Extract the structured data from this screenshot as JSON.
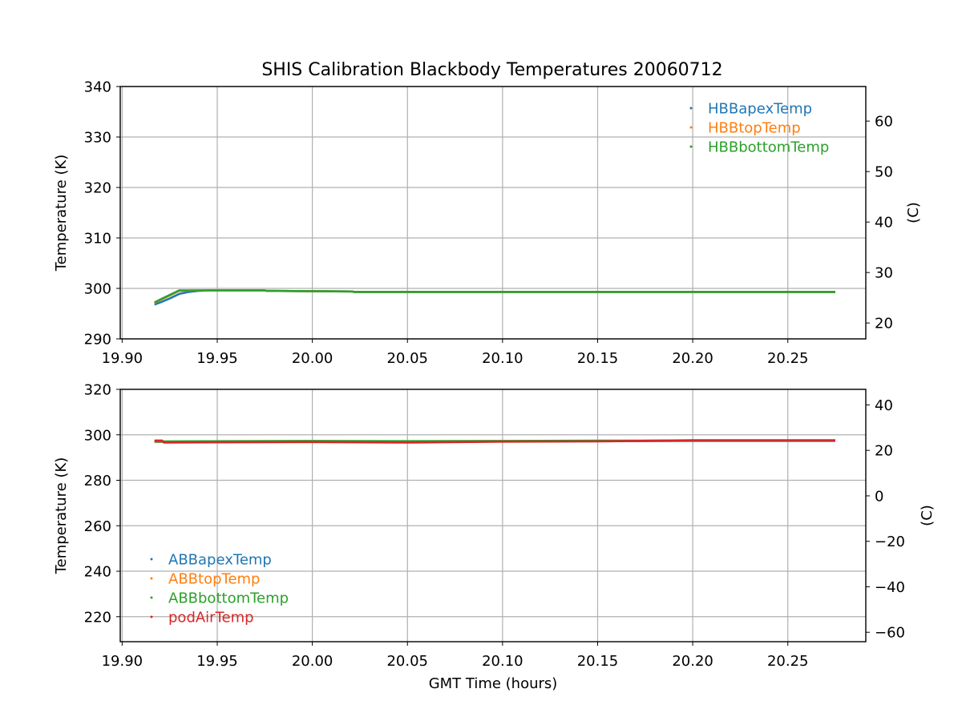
{
  "figure_title": "SHIS Calibration Blackbody Temperatures 20060712",
  "chart_data": [
    {
      "type": "scatter",
      "title": "",
      "xlabel": "",
      "ylabel": "Temperature (K)",
      "ylabel_right": "(C)",
      "xlim": [
        19.899,
        20.291
      ],
      "ylim": [
        290,
        340
      ],
      "ylim_right_celsius": [
        16.85,
        66.85
      ],
      "xticks": [
        "19.90",
        "19.95",
        "20.00",
        "20.05",
        "20.10",
        "20.15",
        "20.20",
        "20.25"
      ],
      "yticks": [
        "290",
        "300",
        "310",
        "320",
        "330",
        "340"
      ],
      "yticks_right": [
        "20",
        "30",
        "40",
        "50",
        "60"
      ],
      "grid": true,
      "legend_position": "top-right",
      "series": [
        {
          "name": "HBBapexTemp",
          "color": "#1f77b4",
          "x": [
            19.917,
            19.92,
            19.925,
            19.93,
            19.935,
            19.94,
            19.945,
            19.975,
            19.976,
            20.021,
            20.022,
            20.275
          ],
          "y": [
            296.8,
            297.2,
            298.0,
            298.9,
            299.3,
            299.5,
            299.6,
            299.6,
            299.5,
            299.4,
            299.3,
            299.3
          ]
        },
        {
          "name": "HBBtopTemp",
          "color": "#ff7f0e",
          "x": [
            19.917,
            19.92,
            19.925,
            19.93,
            19.94,
            19.975,
            19.976,
            20.021,
            20.022,
            20.275
          ],
          "y": [
            297.1,
            297.7,
            298.6,
            299.5,
            299.6,
            299.6,
            299.5,
            299.4,
            299.3,
            299.3
          ]
        },
        {
          "name": "HBBbottomTemp",
          "color": "#2ca02c",
          "x": [
            19.917,
            19.92,
            19.925,
            19.93,
            19.94,
            19.975,
            19.976,
            20.021,
            20.022,
            20.275
          ],
          "y": [
            297.2,
            297.8,
            298.7,
            299.6,
            299.6,
            299.6,
            299.5,
            299.4,
            299.3,
            299.3
          ]
        }
      ]
    },
    {
      "type": "scatter",
      "title": "",
      "xlabel": "GMT Time (hours)",
      "ylabel": "Temperature (K)",
      "ylabel_right": "(C)",
      "xlim": [
        19.899,
        20.291
      ],
      "ylim": [
        209,
        320
      ],
      "ylim_right_celsius": [
        -64.15,
        46.85
      ],
      "xticks": [
        "19.90",
        "19.95",
        "20.00",
        "20.05",
        "20.10",
        "20.15",
        "20.20",
        "20.25"
      ],
      "yticks": [
        "220",
        "240",
        "260",
        "280",
        "300",
        "320"
      ],
      "yticks_right": [
        "−60",
        "−40",
        "−20",
        "0",
        "20",
        "40"
      ],
      "grid": true,
      "legend_position": "lower-left",
      "series": [
        {
          "name": "ABBapexTemp",
          "color": "#1f77b4",
          "x": [
            19.917,
            19.96,
            20.0,
            20.05,
            20.1,
            20.15,
            20.2,
            20.275
          ],
          "y": [
            296.9,
            297.0,
            297.1,
            297.0,
            297.1,
            297.2,
            297.3,
            297.3
          ]
        },
        {
          "name": "ABBtopTemp",
          "color": "#ff7f0e",
          "x": [
            19.917,
            19.96,
            20.0,
            20.05,
            20.1,
            20.15,
            20.2,
            20.275
          ],
          "y": [
            297.0,
            297.1,
            297.2,
            297.1,
            297.2,
            297.3,
            297.4,
            297.4
          ]
        },
        {
          "name": "ABBbottomTemp",
          "color": "#2ca02c",
          "x": [
            19.917,
            19.96,
            20.0,
            20.05,
            20.1,
            20.15,
            20.2,
            20.275
          ],
          "y": [
            297.1,
            297.2,
            297.3,
            297.2,
            297.3,
            297.4,
            297.4,
            297.4
          ]
        },
        {
          "name": "podAirTemp",
          "color": "#d62728",
          "x": [
            19.917,
            19.921,
            19.922,
            19.96,
            20.0,
            20.05,
            20.1,
            20.15,
            20.18,
            20.2,
            20.275
          ],
          "y": [
            297.5,
            297.5,
            296.6,
            296.7,
            296.8,
            296.6,
            297.0,
            297.1,
            297.4,
            297.6,
            297.6
          ]
        }
      ]
    }
  ]
}
